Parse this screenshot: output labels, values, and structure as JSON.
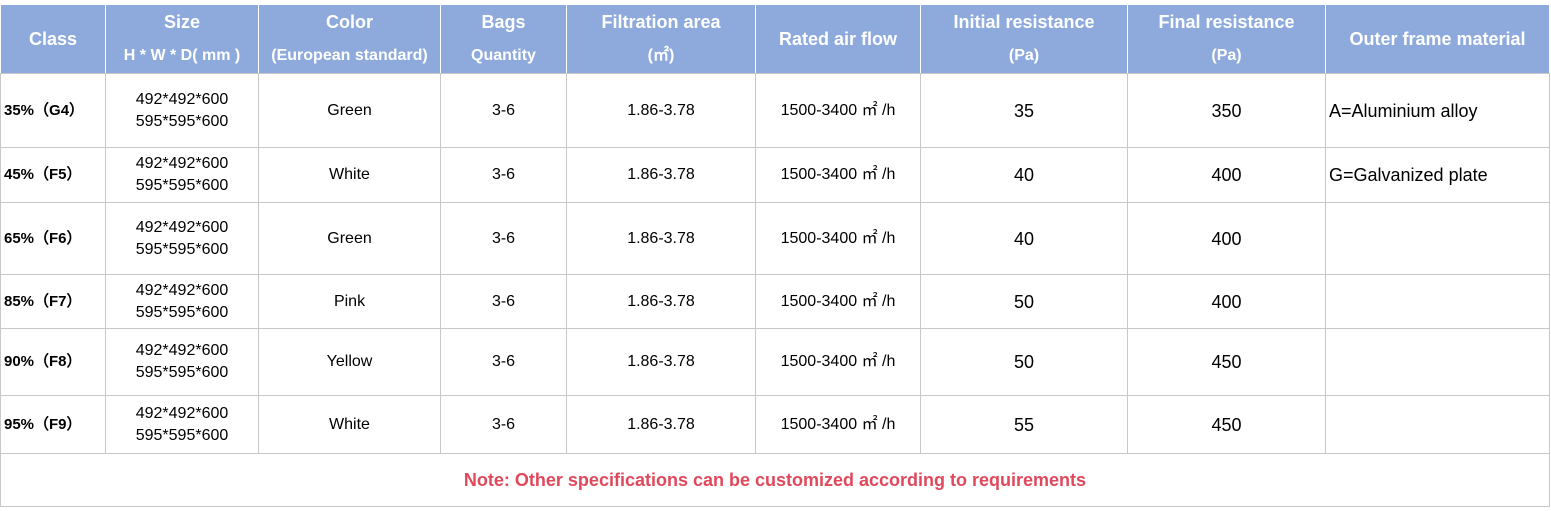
{
  "table": {
    "header": [
      {
        "lines": [
          "Class"
        ]
      },
      {
        "lines": [
          "Size",
          "H * W * D( mm )"
        ]
      },
      {
        "lines": [
          "Color",
          "(European standard)"
        ]
      },
      {
        "lines": [
          "Bags",
          "Quantity"
        ]
      },
      {
        "lines": [
          "Filtration  area",
          "(㎡)"
        ]
      },
      {
        "lines": [
          "Rated air flow"
        ]
      },
      {
        "lines": [
          "Initial resistance",
          "(Pa)"
        ]
      },
      {
        "lines": [
          "Final resistance",
          "(Pa)"
        ]
      },
      {
        "lines": [
          "Outer frame material"
        ]
      }
    ],
    "rows": [
      {
        "class": "35%（G4）",
        "size": [
          "492*492*600",
          "595*595*600"
        ],
        "color": "Green",
        "bags": "3-6",
        "area": "1.86-3.78",
        "flow": "1500-3400 ㎡ /h",
        "initial": 35,
        "final": 350,
        "material": "A=Aluminium alloy"
      },
      {
        "class": "45%（F5）",
        "size": [
          "492*492*600",
          "595*595*600"
        ],
        "color": "White",
        "bags": "3-6",
        "area": "1.86-3.78",
        "flow": "1500-3400 ㎡ /h",
        "initial": 40,
        "final": 400,
        "material": "G=Galvanized plate"
      },
      {
        "class": "65%（F6）",
        "size": [
          "492*492*600",
          "595*595*600"
        ],
        "color": "Green",
        "bags": "3-6",
        "area": "1.86-3.78",
        "flow": "1500-3400 ㎡ /h",
        "initial": 40,
        "final": 400
      },
      {
        "class": "85%（F7）",
        "size": [
          "492*492*600",
          "595*595*600"
        ],
        "color": "Pink",
        "bags": "3-6",
        "area": "1.86-3.78",
        "flow": "1500-3400 ㎡ /h",
        "initial": 50,
        "final": 400
      },
      {
        "class": "90%（F8）",
        "size": [
          "492*492*600",
          "595*595*600"
        ],
        "color": "Yellow",
        "bags": "3-6",
        "area": "1.86-3.78",
        "flow": "1500-3400 ㎡ /h",
        "initial": 50,
        "final": 450
      },
      {
        "class": "95%（F9）",
        "size": [
          "492*492*600",
          "595*595*600"
        ],
        "color": "White",
        "bags": "3-6",
        "area": "1.86-3.78",
        "flow": "1500-3400 ㎡ /h",
        "initial": 55,
        "final": 450
      }
    ],
    "note": "Note: Other specifications can be customized according to requirements"
  }
}
